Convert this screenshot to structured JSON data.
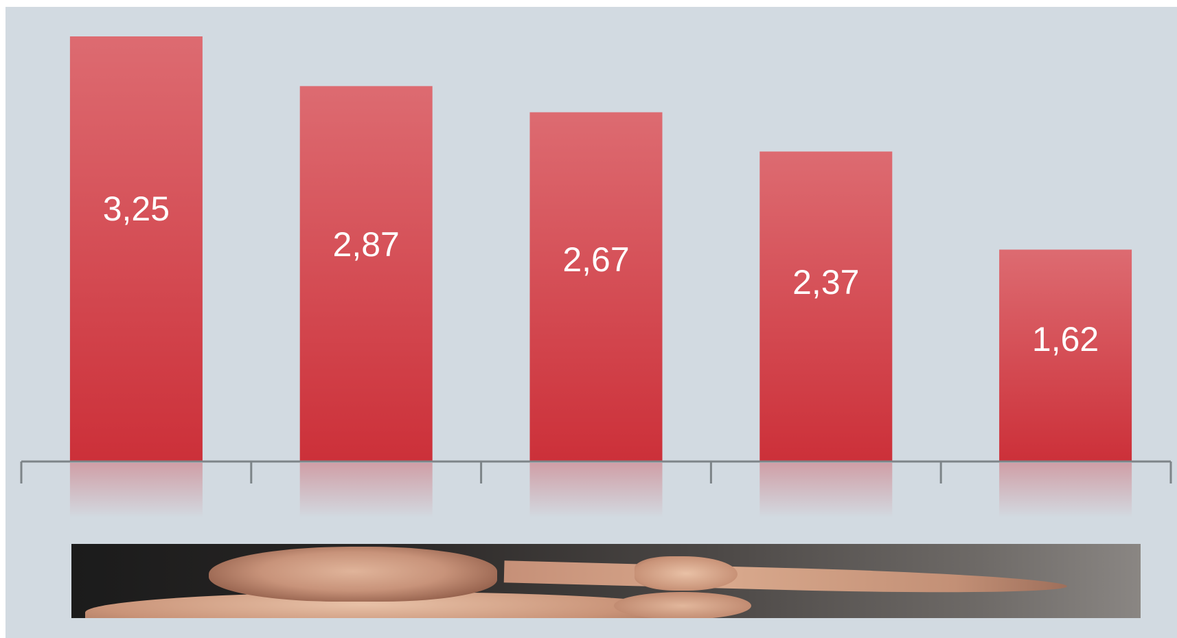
{
  "chart_data": {
    "type": "bar",
    "categories": [
      "",
      "",
      "",
      "",
      ""
    ],
    "values": [
      3.25,
      2.87,
      2.67,
      2.37,
      1.62
    ],
    "value_labels": [
      "3,25",
      "2,87",
      "2,67",
      "2,37",
      "1,62"
    ],
    "title": "",
    "xlabel": "",
    "ylabel": "",
    "ylim": [
      0,
      3.25
    ],
    "grid": false,
    "legend": "none"
  },
  "colors": {
    "background": "#d2dae1",
    "bar_top": "#dd6b71",
    "bar_bottom": "#cc3039",
    "axis": "#7d8488",
    "label": "#ffffff"
  },
  "photo": {
    "subject": "man-pointing-photo"
  }
}
